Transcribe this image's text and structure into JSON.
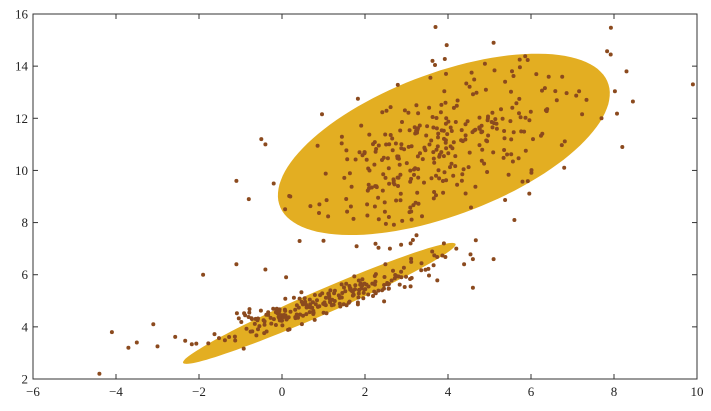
{
  "chart_data": {
    "type": "scatter",
    "title": "",
    "xlabel": "",
    "ylabel": "",
    "xlim": [
      -6,
      10
    ],
    "ylim": [
      2,
      16
    ],
    "grid": false,
    "x_ticks": [
      -6,
      -4,
      -2,
      0,
      2,
      4,
      6,
      8,
      10
    ],
    "y_ticks": [
      2,
      4,
      6,
      8,
      10,
      12,
      14,
      16
    ],
    "colors": {
      "points": "#8B4A1E",
      "ellipses": "#E3AE22",
      "axes": "#333333"
    },
    "ellipses": [
      {
        "center": [
          0.9,
          4.9
        ],
        "semi_axes": [
          4.0,
          0.42
        ],
        "angle_deg": 35
      },
      {
        "center": [
          3.9,
          11.0
        ],
        "semi_axes": [
          4.7,
          2.45
        ],
        "angle_deg": 38
      }
    ],
    "clusters": [
      {
        "n": 230,
        "mean": [
          0.9,
          4.9
        ],
        "std": [
          1.3,
          0.72
        ],
        "corr": 0.92,
        "seed": 11
      },
      {
        "n": 330,
        "mean": [
          3.9,
          11.0
        ],
        "std": [
          1.55,
          1.55
        ],
        "corr": 0.55,
        "seed": 29
      }
    ],
    "extra_points": [
      [
        -3.7,
        3.2
      ],
      [
        -3.0,
        3.25
      ],
      [
        -3.1,
        4.1
      ],
      [
        -4.1,
        3.8
      ],
      [
        -4.4,
        2.2
      ],
      [
        -3.5,
        3.4
      ],
      [
        9.9,
        13.3
      ],
      [
        8.3,
        13.8
      ],
      [
        8.2,
        10.9
      ],
      [
        7.7,
        12.0
      ],
      [
        3.7,
        15.5
      ],
      [
        5.1,
        14.9
      ],
      [
        -1.9,
        6.0
      ],
      [
        -1.1,
        6.4
      ],
      [
        -1.1,
        9.6
      ],
      [
        -0.8,
        8.9
      ],
      [
        -0.5,
        11.2
      ],
      [
        -0.4,
        11.0
      ],
      [
        -0.2,
        9.5
      ],
      [
        0.2,
        9.0
      ],
      [
        1.0,
        7.3
      ],
      [
        2.6,
        7.0
      ],
      [
        3.1,
        7.2
      ],
      [
        3.9,
        7.2
      ],
      [
        4.2,
        7.0
      ],
      [
        4.6,
        6.6
      ],
      [
        5.1,
        6.6
      ],
      [
        5.6,
        8.1
      ],
      [
        6.8,
        10.1
      ],
      [
        4.6,
        5.5
      ],
      [
        -0.4,
        6.2
      ],
      [
        0.1,
        5.9
      ]
    ]
  }
}
